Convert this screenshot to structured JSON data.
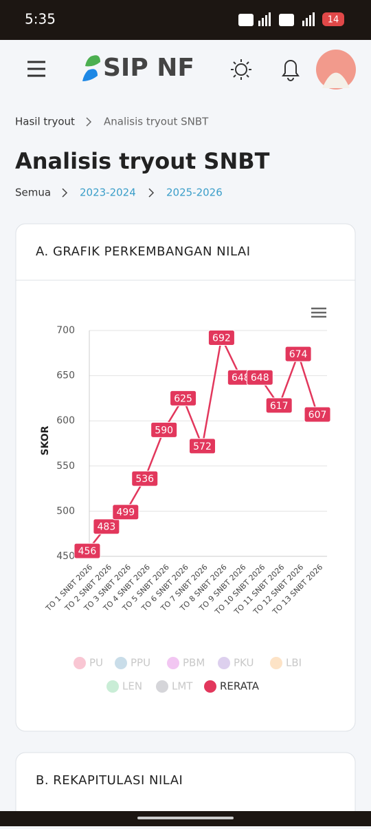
{
  "status": {
    "time": "5:35",
    "battery": "14"
  },
  "header": {
    "logo": "SIP NF"
  },
  "breadcrumb": [
    "Hasil tryout",
    "Analisis tryout SNBT"
  ],
  "title": "Analisis tryout SNBT",
  "filters": [
    "Semua",
    "2023-2024",
    "2025-2026"
  ],
  "cards": [
    "A. GRAFIK PERKEMBANGAN NILAI",
    "B. REKAPITULASI NILAI"
  ],
  "chart_data": {
    "type": "line",
    "ylabel": "SKOR",
    "categories": [
      "TO 1 SNBT 2026",
      "TO 2 SNBT 2026",
      "TO 3 SNBT 2026",
      "TO 4 SNBT 2026",
      "TO 5 SNBT 2026",
      "TO 6 SNBT 2026",
      "TO 7 SNBT 2026",
      "TO 8 SNBT 2026",
      "TO 9 SNBT 2026",
      "TO 10 SNBT 2026",
      "TO 11 SNBT 2026",
      "TO 12 SNBT 2026",
      "TO 13 SNBT 2026"
    ],
    "series": [
      {
        "name": "PU",
        "color": "#f9c6d3",
        "visible": false
      },
      {
        "name": "PPU",
        "color": "#c9dde9",
        "visible": false
      },
      {
        "name": "PBM",
        "color": "#f2c6f2",
        "visible": false
      },
      {
        "name": "PKU",
        "color": "#ddd0ee",
        "visible": false
      },
      {
        "name": "LBI",
        "color": "#fde3c6",
        "visible": false
      },
      {
        "name": "LEN",
        "color": "#c9edd6",
        "visible": false
      },
      {
        "name": "LMT",
        "color": "#d5d5d9",
        "visible": false
      },
      {
        "name": "RERATA",
        "color": "#e2375c",
        "visible": true,
        "values": [
          456,
          483,
          499,
          536,
          590,
          625,
          572,
          692,
          648,
          648,
          617,
          674,
          607
        ]
      }
    ],
    "ylim": [
      450,
      700
    ],
    "yticks": [
      450,
      500,
      550,
      600,
      650,
      700
    ],
    "grid": true
  }
}
